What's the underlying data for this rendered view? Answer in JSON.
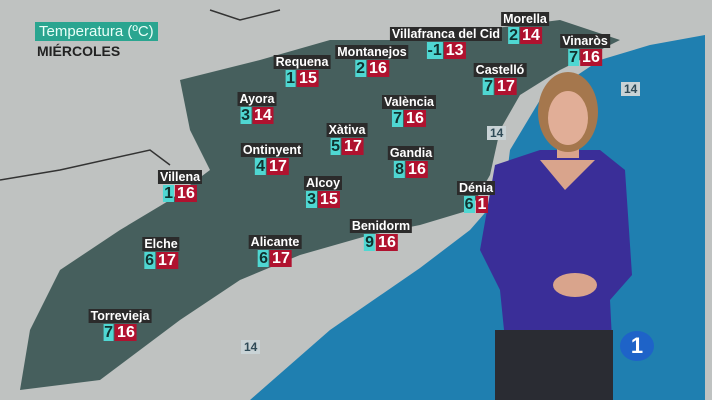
{
  "header": {
    "title": "Temperatura (ºC)",
    "day": "MIÉRCOLES"
  },
  "colors": {
    "min_box": "#4fd7d2",
    "max_box": "#b0122f",
    "sea": "#1f7fb0",
    "land": "#3f5a57",
    "title_bg": "#2aa590"
  },
  "cities": [
    {
      "name": "Morella",
      "min": "2",
      "max": "14"
    },
    {
      "name": "Villafranca del Cid",
      "min": "-1",
      "max": "13"
    },
    {
      "name": "Vinaròs",
      "min": "7",
      "max": "16"
    },
    {
      "name": "Montanejos",
      "min": "2",
      "max": "16"
    },
    {
      "name": "Requena",
      "min": "1",
      "max": "15"
    },
    {
      "name": "Castelló",
      "min": "7",
      "max": "17"
    },
    {
      "name": "Ayora",
      "min": "3",
      "max": "14"
    },
    {
      "name": "València",
      "min": "7",
      "max": "16"
    },
    {
      "name": "Xàtiva",
      "min": "5",
      "max": "17"
    },
    {
      "name": "Ontinyent",
      "min": "4",
      "max": "17"
    },
    {
      "name": "Gandia",
      "min": "8",
      "max": "16"
    },
    {
      "name": "Villena",
      "min": "1",
      "max": "16"
    },
    {
      "name": "Alcoy",
      "min": "3",
      "max": "15"
    },
    {
      "name": "Dénia",
      "min": "6",
      "max": "1"
    },
    {
      "name": "Benidorm",
      "min": "9",
      "max": "16"
    },
    {
      "name": "Elche",
      "min": "6",
      "max": "17"
    },
    {
      "name": "Alicante",
      "min": "6",
      "max": "17"
    },
    {
      "name": "Torrevieja",
      "min": "7",
      "max": "16"
    }
  ],
  "sea_temps": [
    "14",
    "14",
    "14"
  ],
  "channel_logo": "1"
}
